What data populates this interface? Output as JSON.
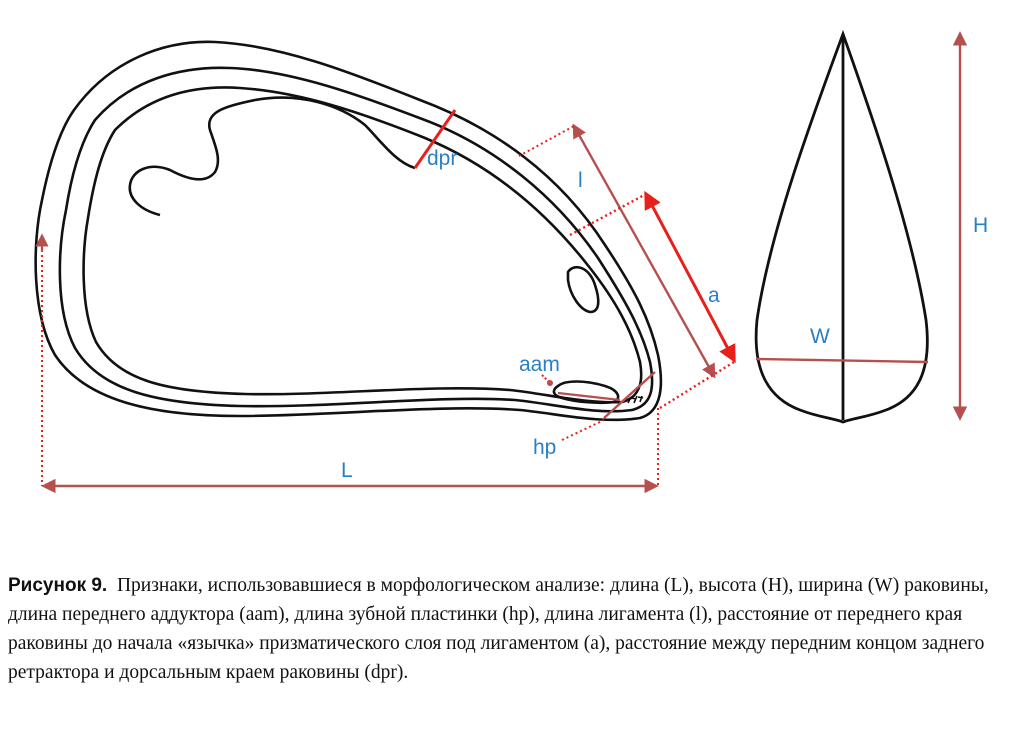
{
  "labels": {
    "dpr": "dpr",
    "l": "l",
    "a": "a",
    "aam": "aam",
    "hp": "hp",
    "L": "L",
    "H": "H",
    "W": "W"
  },
  "colors": {
    "outline": "#111111",
    "measure": "#b5504f",
    "highlight": "#e8201c",
    "label": "#2a7fc4"
  },
  "caption": {
    "label": "Рисунок 9.",
    "text": "Признаки, использовавшиеся в морфологическом анализе: длина (L), высота (H), ширина (W) раковины, длина переднего аддуктора (aam), длина зубной пластинки (hp), длина лигамента (l), расстояние от переднего края раковины до начала «язычка» призматического слоя под лигаментом (a), расстояние между передним концом заднего ретрактора и дорсальным краем раковины (dpr)."
  }
}
